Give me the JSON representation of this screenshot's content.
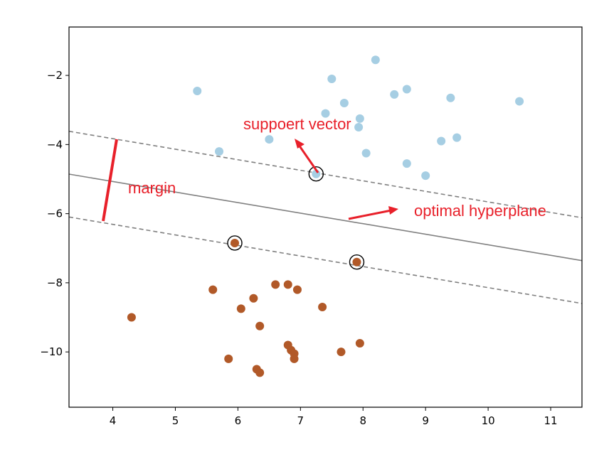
{
  "chart_data": {
    "type": "scatter",
    "title": "",
    "xlabel": "",
    "ylabel": "",
    "xlim": [
      3.3,
      11.5
    ],
    "ylim": [
      -11.6,
      -0.6
    ],
    "x_ticks": [
      4,
      5,
      6,
      7,
      8,
      9,
      10,
      11
    ],
    "y_ticks": [
      -2,
      -4,
      -6,
      -8,
      -10
    ],
    "x_tick_labels": [
      "4",
      "5",
      "6",
      "7",
      "8",
      "9",
      "10",
      "11"
    ],
    "y_tick_labels": [
      "−2",
      "−4",
      "−6",
      "−8",
      "−10"
    ],
    "grid": false,
    "series": [
      {
        "color": "#a6cee3",
        "points": [
          [
            8.2,
            -1.55
          ],
          [
            7.5,
            -2.1
          ],
          [
            5.35,
            -2.45
          ],
          [
            8.7,
            -2.4
          ],
          [
            8.5,
            -2.55
          ],
          [
            9.4,
            -2.65
          ],
          [
            10.5,
            -2.75
          ],
          [
            7.7,
            -2.8
          ],
          [
            7.4,
            -3.1
          ],
          [
            7.95,
            -3.25
          ],
          [
            7.93,
            -3.5
          ],
          [
            9.5,
            -3.8
          ],
          [
            9.25,
            -3.9
          ],
          [
            6.5,
            -3.85
          ],
          [
            5.7,
            -4.2
          ],
          [
            8.05,
            -4.25
          ],
          [
            8.7,
            -4.55
          ],
          [
            9.0,
            -4.9
          ],
          [
            7.25,
            -4.85
          ]
        ]
      },
      {
        "color": "#b15928",
        "points": [
          [
            5.95,
            -6.85
          ],
          [
            7.9,
            -7.4
          ],
          [
            6.6,
            -8.05
          ],
          [
            6.8,
            -8.05
          ],
          [
            5.6,
            -8.2
          ],
          [
            6.95,
            -8.2
          ],
          [
            6.25,
            -8.45
          ],
          [
            6.05,
            -8.75
          ],
          [
            7.35,
            -8.7
          ],
          [
            4.3,
            -9.0
          ],
          [
            6.35,
            -9.25
          ],
          [
            6.8,
            -9.8
          ],
          [
            6.85,
            -9.95
          ],
          [
            7.95,
            -9.75
          ],
          [
            6.9,
            -10.05
          ],
          [
            7.65,
            -10.0
          ],
          [
            6.9,
            -10.2
          ],
          [
            5.85,
            -10.2
          ],
          [
            6.3,
            -10.5
          ],
          [
            6.35,
            -10.6
          ]
        ]
      }
    ],
    "support_vectors": [
      [
        7.25,
        -4.85
      ],
      [
        5.95,
        -6.85
      ],
      [
        7.9,
        -7.4
      ]
    ],
    "hyperplane": {
      "slope": -0.305,
      "intercept": -3.85,
      "margin_offset": 1.24,
      "color": "#808080"
    },
    "annotations": {
      "support_vector": "suppoert vector",
      "margin": "margin",
      "hyperplane": "optimal hyperplane",
      "color": "#e8202a"
    }
  }
}
